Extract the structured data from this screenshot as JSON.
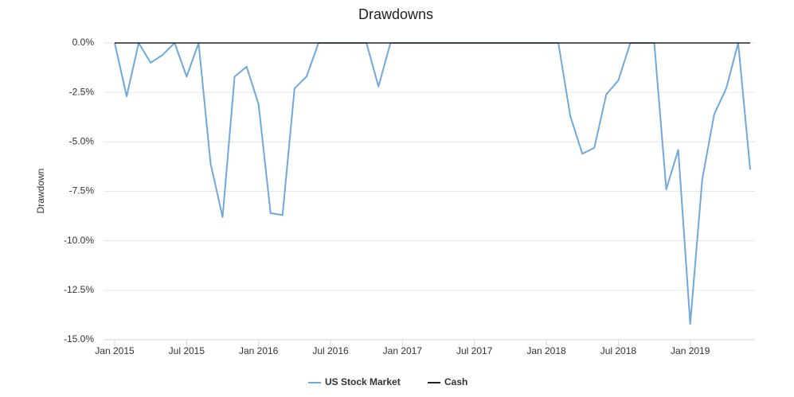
{
  "chart_data": {
    "type": "line",
    "title": "Drawdowns",
    "y_label": "Drawdown",
    "categories": [
      "Jan 2015",
      null,
      null,
      null,
      null,
      null,
      "Jul 2015",
      null,
      null,
      null,
      null,
      null,
      "Jan 2016",
      null,
      null,
      null,
      null,
      null,
      "Jul 2016",
      null,
      null,
      null,
      null,
      null,
      "Jan 2017",
      null,
      null,
      null,
      null,
      null,
      "Jul 2017",
      null,
      null,
      null,
      null,
      null,
      "Jan 2018",
      null,
      null,
      null,
      null,
      null,
      "Jul 2018",
      null,
      null,
      null,
      null,
      null,
      "Jan 2019",
      null,
      null,
      null,
      null,
      null
    ],
    "series": [
      {
        "name": "US Stock Market",
        "color": "#6fa8dc",
        "values": [
          0,
          -2.7,
          0,
          -1.0,
          -0.6,
          0,
          -1.7,
          0,
          -6.1,
          -8.8,
          -1.7,
          -1.2,
          -3.1,
          -8.6,
          -8.7,
          -2.3,
          -1.7,
          0,
          0,
          0,
          0,
          0,
          -2.2,
          0,
          0,
          0,
          0,
          0,
          0,
          0,
          0,
          0,
          0,
          0,
          0,
          0,
          0,
          0,
          -3.7,
          -5.6,
          -5.3,
          -2.6,
          -1.9,
          0,
          0,
          0,
          -7.4,
          -5.4,
          -14.2,
          -6.9,
          -3.6,
          -2.3,
          0,
          -6.4
        ]
      },
      {
        "name": "Cash",
        "color": "#222222",
        "values": [
          0,
          0,
          0,
          0,
          0,
          0,
          0,
          0,
          0,
          0,
          0,
          0,
          0,
          0,
          0,
          0,
          0,
          0,
          0,
          0,
          0,
          0,
          0,
          0,
          0,
          0,
          0,
          0,
          0,
          0,
          0,
          0,
          0,
          0,
          0,
          0,
          0,
          0,
          0,
          0,
          0,
          0,
          0,
          0,
          0,
          0,
          0,
          0,
          0,
          0,
          0,
          0,
          0,
          0
        ]
      }
    ],
    "ylim": [
      -15,
      0
    ],
    "yticks": [
      {
        "value": 0,
        "label": "0.0%"
      },
      {
        "value": -2.5,
        "label": "-2.5%"
      },
      {
        "value": -5,
        "label": "-5.0%"
      },
      {
        "value": -7.5,
        "label": "-7.5%"
      },
      {
        "value": -10,
        "label": "-10.0%"
      },
      {
        "value": -12.5,
        "label": "-12.5%"
      },
      {
        "value": -15,
        "label": "-15.0%"
      }
    ],
    "grid": true,
    "legend": "bottom"
  }
}
